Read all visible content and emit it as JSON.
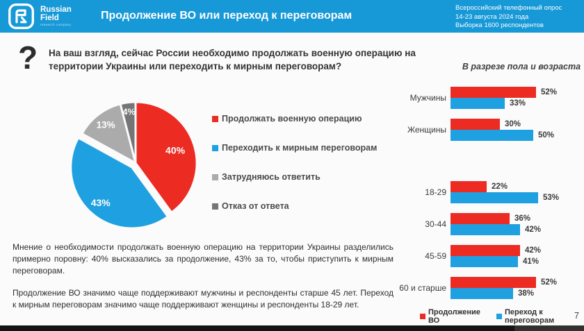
{
  "header": {
    "brand_line1": "Russian",
    "brand_line2": "Field",
    "brand_tagline": "research company",
    "title": "Продолжение ВО или переход к переговорам",
    "meta_lines": [
      "Всероссийский телефонный опрос",
      "14-23 августа 2024 года",
      "Выборка 1600 респондентов"
    ]
  },
  "question": {
    "text": "На ваш взгляд, сейчас России необходимо продолжать военную операцию на территории Украины или переходить к мирным переговорам?"
  },
  "colors": {
    "header_blue": "#1798d7",
    "red": "#ec2b23",
    "blue": "#1fa0e0",
    "gray": "#ababab",
    "dark_gray": "#757575"
  },
  "chart_data": [
    {
      "type": "pie",
      "labels": [
        "Продолжать военную операцию",
        "Переходить к мирным переговорам",
        "Затрудняюсь ответить",
        "Отказ от ответа"
      ],
      "values": [
        40,
        43,
        13,
        4
      ],
      "value_labels": [
        "40%",
        "43%",
        "13%",
        "4%"
      ],
      "colors": [
        "#ec2b23",
        "#1fa0e0",
        "#ababab",
        "#757575"
      ],
      "exploded_index": 1,
      "legend_position": "right",
      "start_angle_deg": 0
    },
    {
      "type": "bar",
      "orientation": "horizontal",
      "title": "В разрезе пола и возраста",
      "categories": [
        "Мужчины",
        "Женщины",
        "18-29",
        "30-44",
        "45-59",
        "60 и старше"
      ],
      "series": [
        {
          "name": "Продолжение ВО",
          "color": "#ec2b23",
          "values": [
            52,
            30,
            22,
            36,
            42,
            52
          ]
        },
        {
          "name": "Переход к переговорам",
          "color": "#1fa0e0",
          "values": [
            33,
            50,
            53,
            42,
            41,
            38
          ]
        }
      ],
      "value_suffix": "%",
      "xlim": [
        0,
        60
      ],
      "grid": false,
      "group_gap_after_index": 1,
      "legend_position": "bottom"
    }
  ],
  "paragraphs": [
    "Мнение о необходимости продолжать военную операцию на территории Украины разделились примерно поровну: 40% высказались за продолжение, 43% за то, чтобы приступить к мирным переговорам.",
    "Продолжение ВО значимо чаще поддерживают мужчины и респонденты старше 45 лет. Переход к мирным переговорам значимо чаще поддерживают женщины и респонденты 18-29 лет."
  ],
  "page_number": "7"
}
